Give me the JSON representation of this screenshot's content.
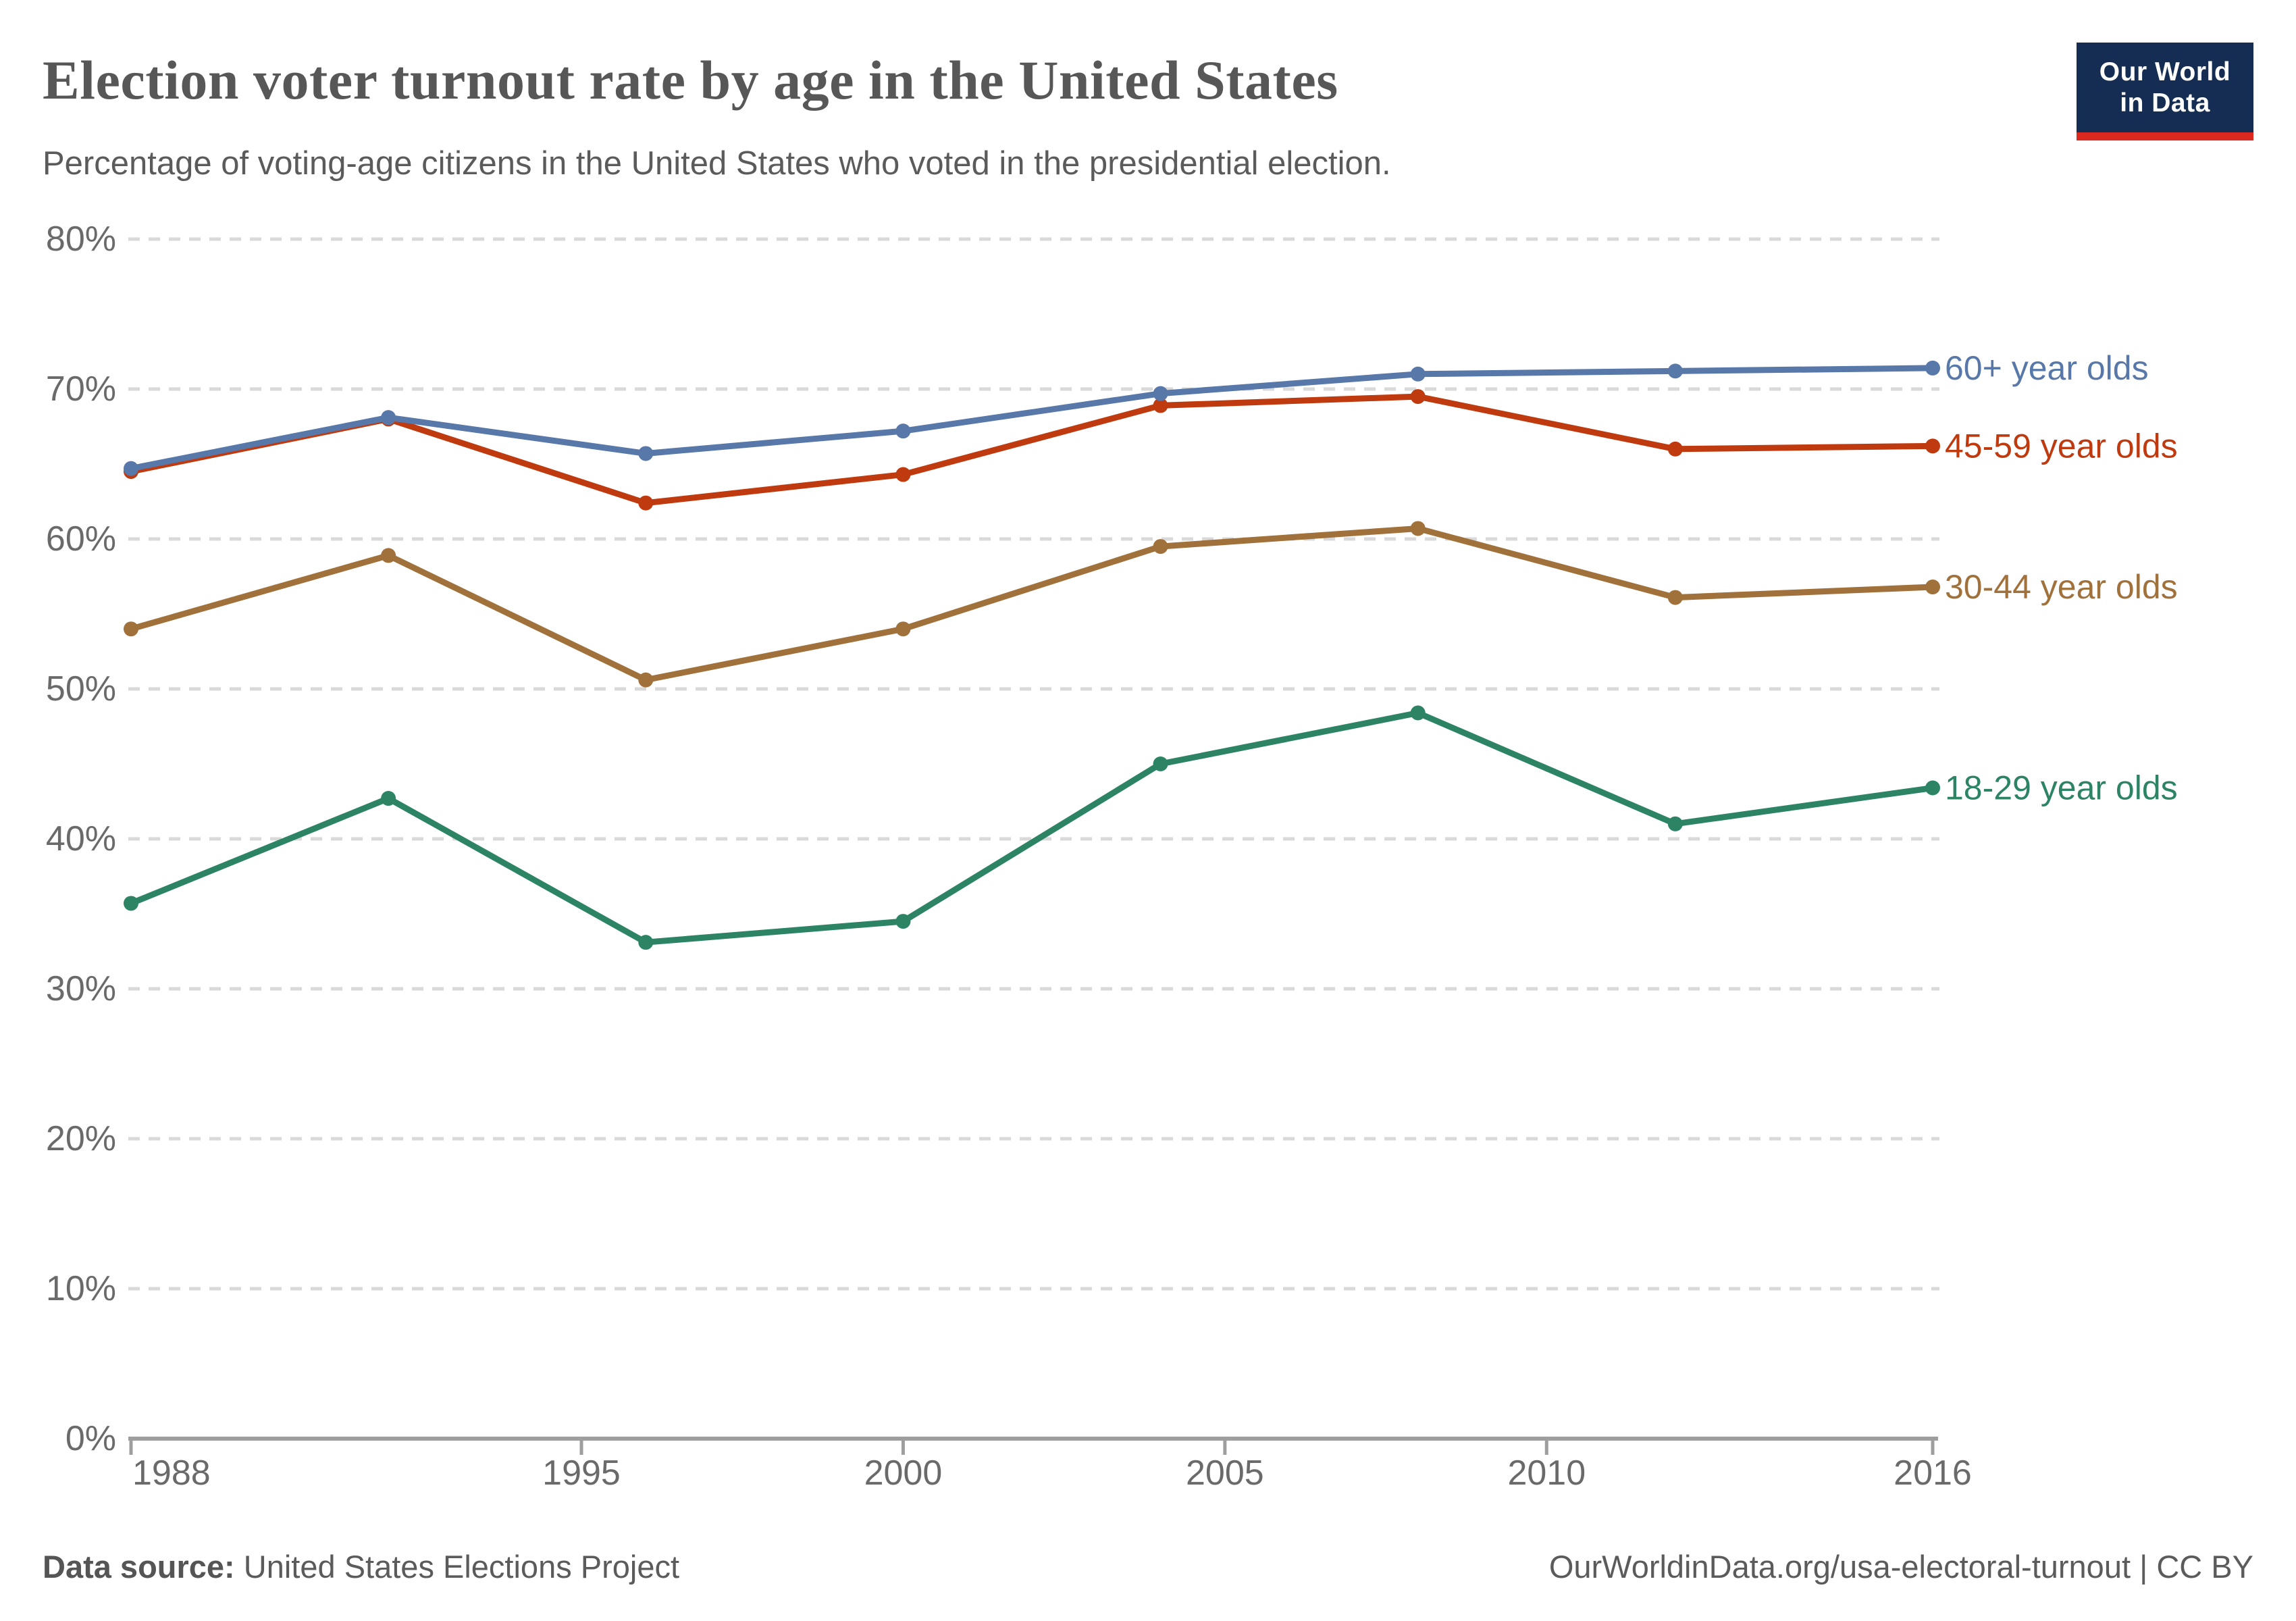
{
  "header": {
    "title": "Election voter turnout rate by age in the United States",
    "subtitle": "Percentage of voting-age citizens in the United States who voted in the presidential election."
  },
  "logo": {
    "line1": "Our World",
    "line2": "in Data",
    "navy": "#152d52",
    "red": "#dc2920"
  },
  "footer": {
    "source_label": "Data source:",
    "source_value": "United States Elections Project",
    "credit": "OurWorldinData.org/usa-electoral-turnout | CC BY"
  },
  "chart_data": {
    "type": "line",
    "title": "Election voter turnout rate by age in the United States",
    "subtitle": "Percentage of voting-age citizens in the United States who voted in the presidential election.",
    "x": [
      1988,
      1992,
      1996,
      2000,
      2004,
      2008,
      2012,
      2016
    ],
    "x_tick_labels": [
      1988,
      1995,
      2000,
      2005,
      2010,
      2016
    ],
    "y_ticks": [
      0,
      10,
      20,
      30,
      40,
      50,
      60,
      70,
      80
    ],
    "y_tick_suffix": "%",
    "xlim": [
      1988,
      2016
    ],
    "ylim": [
      0,
      80
    ],
    "grid": "horizontal-dashed",
    "legend_position": "right-edge-labels",
    "axis_color": "#9e9e9e",
    "gridline_color": "#d9d9d9",
    "tick_label_color": "#6a6a6a",
    "series": [
      {
        "id": "60-plus",
        "name": "60+ year olds",
        "color": "#5878a9",
        "values": [
          64.7,
          68.1,
          65.7,
          67.2,
          69.7,
          71.0,
          71.2,
          71.4
        ]
      },
      {
        "id": "45-59",
        "name": "45-59 year olds",
        "color": "#c03a10",
        "values": [
          64.5,
          68.0,
          62.4,
          64.3,
          68.9,
          69.5,
          66.0,
          66.2
        ]
      },
      {
        "id": "30-44",
        "name": "30-44 year olds",
        "color": "#a1713b",
        "values": [
          54.0,
          58.9,
          50.6,
          54.0,
          59.5,
          60.7,
          56.1,
          56.8
        ]
      },
      {
        "id": "18-29",
        "name": "18-29 year olds",
        "color": "#2c8465",
        "values": [
          35.7,
          42.7,
          33.1,
          34.5,
          45.0,
          48.4,
          41.0,
          43.4
        ]
      }
    ]
  }
}
